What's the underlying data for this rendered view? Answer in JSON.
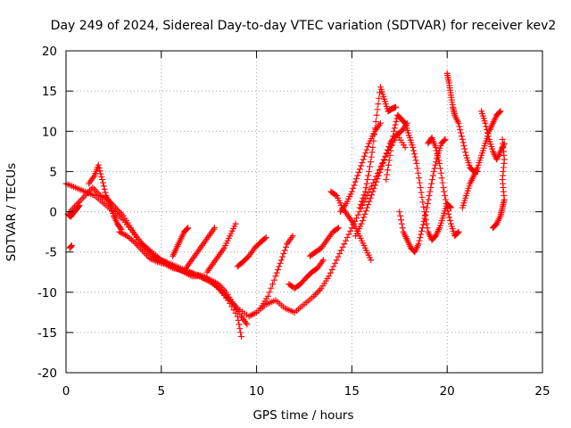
{
  "chart_data": {
    "type": "scatter",
    "title": "Day 249 of 2024, Sidereal Day-to-day VTEC variation (SDTVAR) for receiver kev2",
    "xlabel": "GPS time / hours",
    "ylabel": "SDTVAR / TECUs",
    "xlim": [
      0,
      25
    ],
    "ylim": [
      -20,
      20
    ],
    "xticks": [
      0,
      5,
      10,
      15,
      20,
      25
    ],
    "yticks": [
      -20,
      -15,
      -10,
      -5,
      0,
      5,
      10,
      15,
      20
    ],
    "grid": true,
    "marker": "+",
    "color": "#ff0000",
    "series": [
      {
        "name": "trace-1",
        "points": [
          [
            0.0,
            3.5
          ],
          [
            0.5,
            3.0
          ],
          [
            1.0,
            2.5
          ],
          [
            1.5,
            2.0
          ],
          [
            2.0,
            1.0
          ],
          [
            2.5,
            0.0
          ],
          [
            3.0,
            -1.0
          ],
          [
            3.5,
            -2.5
          ],
          [
            4.0,
            -4.0
          ],
          [
            4.5,
            -5.0
          ],
          [
            5.0,
            -6.0
          ],
          [
            5.5,
            -6.5
          ],
          [
            6.0,
            -7.0
          ],
          [
            6.5,
            -7.5
          ],
          [
            7.0,
            -8.0
          ],
          [
            7.5,
            -8.5
          ],
          [
            8.0,
            -9.5
          ],
          [
            8.5,
            -11.0
          ],
          [
            9.0,
            -13.0
          ],
          [
            9.2,
            -15.5
          ]
        ]
      },
      {
        "name": "trace-2",
        "points": [
          [
            0.2,
            0.0
          ],
          [
            0.6,
            1.0
          ],
          [
            1.0,
            2.0
          ],
          [
            1.4,
            3.0
          ],
          [
            1.8,
            2.0
          ],
          [
            2.2,
            1.5
          ],
          [
            2.6,
            0.5
          ],
          [
            3.0,
            -0.5
          ],
          [
            3.4,
            -2.0
          ],
          [
            3.8,
            -3.5
          ],
          [
            4.2,
            -4.5
          ],
          [
            4.6,
            -5.5
          ],
          [
            5.0,
            -6.0
          ],
          [
            5.4,
            -6.5
          ],
          [
            5.8,
            -7.0
          ],
          [
            6.2,
            -7.5
          ],
          [
            6.6,
            -8.0
          ],
          [
            7.0,
            -8.0
          ],
          [
            7.4,
            -8.5
          ],
          [
            7.8,
            -9.0
          ],
          [
            8.2,
            -10.0
          ],
          [
            8.6,
            -11.0
          ],
          [
            9.0,
            -12.0
          ],
          [
            9.6,
            -13.0
          ],
          [
            10.0,
            -12.5
          ],
          [
            10.5,
            -11.5
          ],
          [
            11.0,
            -11.0
          ],
          [
            11.5,
            -12.0
          ],
          [
            12.0,
            -12.5
          ],
          [
            12.5,
            -11.5
          ],
          [
            13.0,
            -10.5
          ],
          [
            13.4,
            -9.5
          ],
          [
            13.8,
            -8.0
          ],
          [
            14.2,
            -6.0
          ],
          [
            14.6,
            -4.0
          ],
          [
            15.0,
            -2.0
          ],
          [
            15.4,
            0.0
          ],
          [
            15.8,
            2.0
          ],
          [
            16.2,
            4.0
          ],
          [
            16.6,
            6.0
          ],
          [
            17.0,
            8.0
          ],
          [
            17.4,
            9.5
          ],
          [
            17.8,
            8.0
          ]
        ]
      },
      {
        "name": "trace-3",
        "points": [
          [
            1.2,
            3.5
          ],
          [
            1.5,
            4.5
          ],
          [
            1.7,
            5.8
          ],
          [
            1.9,
            4.0
          ],
          [
            2.1,
            2.0
          ],
          [
            2.3,
            1.0
          ],
          [
            2.5,
            -0.5
          ],
          [
            2.7,
            -1.5
          ],
          [
            2.9,
            -2.2
          ]
        ]
      },
      {
        "name": "trace-4",
        "points": [
          [
            2.8,
            -2.5
          ],
          [
            3.2,
            -3.0
          ],
          [
            3.6,
            -3.8
          ],
          [
            4.0,
            -4.8
          ],
          [
            4.4,
            -5.8
          ],
          [
            4.8,
            -6.2
          ],
          [
            5.2,
            -6.5
          ],
          [
            5.6,
            -7.0
          ],
          [
            6.0,
            -7.2
          ],
          [
            6.4,
            -7.5
          ],
          [
            6.8,
            -7.8
          ],
          [
            7.2,
            -8.0
          ],
          [
            7.6,
            -8.5
          ],
          [
            8.0,
            -9.0
          ],
          [
            8.4,
            -10.0
          ],
          [
            8.8,
            -11.5
          ],
          [
            9.2,
            -13.0
          ],
          [
            9.5,
            -14.0
          ]
        ]
      },
      {
        "name": "trace-5",
        "points": [
          [
            5.6,
            -5.5
          ],
          [
            5.8,
            -4.5
          ],
          [
            6.0,
            -3.5
          ],
          [
            6.2,
            -2.5
          ],
          [
            6.4,
            -2.0
          ]
        ]
      },
      {
        "name": "trace-6",
        "points": [
          [
            6.3,
            -7.0
          ],
          [
            6.6,
            -6.0
          ],
          [
            6.9,
            -5.0
          ],
          [
            7.2,
            -4.0
          ],
          [
            7.5,
            -3.0
          ],
          [
            7.8,
            -2.0
          ]
        ]
      },
      {
        "name": "trace-7",
        "points": [
          [
            7.4,
            -7.5
          ],
          [
            7.7,
            -6.5
          ],
          [
            8.0,
            -5.5
          ],
          [
            8.3,
            -4.5
          ],
          [
            8.6,
            -3.0
          ],
          [
            8.9,
            -1.5
          ]
        ]
      },
      {
        "name": "trace-8",
        "points": [
          [
            9.0,
            -6.8
          ],
          [
            9.3,
            -6.2
          ],
          [
            9.6,
            -5.5
          ],
          [
            9.9,
            -4.5
          ],
          [
            10.2,
            -3.8
          ],
          [
            10.5,
            -3.2
          ]
        ]
      },
      {
        "name": "trace-9",
        "points": [
          [
            10.2,
            -12.0
          ],
          [
            10.6,
            -10.5
          ],
          [
            11.0,
            -8.0
          ],
          [
            11.3,
            -6.0
          ],
          [
            11.6,
            -4.0
          ],
          [
            11.9,
            -3.0
          ]
        ]
      },
      {
        "name": "trace-10",
        "points": [
          [
            11.7,
            -9.0
          ],
          [
            12.0,
            -9.5
          ],
          [
            12.3,
            -9.0
          ],
          [
            12.6,
            -8.2
          ],
          [
            12.9,
            -7.5
          ],
          [
            13.2,
            -7.0
          ],
          [
            13.5,
            -6.0
          ]
        ]
      },
      {
        "name": "trace-11",
        "points": [
          [
            12.8,
            -5.5
          ],
          [
            13.1,
            -5.0
          ],
          [
            13.4,
            -4.5
          ],
          [
            13.7,
            -3.5
          ],
          [
            14.0,
            -2.5
          ],
          [
            14.3,
            -2.0
          ]
        ]
      },
      {
        "name": "trace-12",
        "points": [
          [
            13.9,
            2.5
          ],
          [
            14.2,
            2.0
          ],
          [
            14.5,
            0.5
          ],
          [
            14.8,
            -0.5
          ],
          [
            15.1,
            -1.5
          ],
          [
            15.4,
            -3.0
          ],
          [
            15.7,
            -4.5
          ],
          [
            16.0,
            -6.0
          ]
        ]
      },
      {
        "name": "trace-13",
        "points": [
          [
            14.4,
            0.0
          ],
          [
            14.7,
            1.0
          ],
          [
            15.0,
            2.5
          ],
          [
            15.3,
            4.5
          ],
          [
            15.6,
            6.5
          ],
          [
            15.9,
            8.5
          ],
          [
            16.2,
            10.0
          ],
          [
            16.5,
            11.0
          ]
        ]
      },
      {
        "name": "trace-14",
        "points": [
          [
            15.2,
            -3.0
          ],
          [
            15.5,
            -1.5
          ],
          [
            15.8,
            0.5
          ],
          [
            16.1,
            2.5
          ],
          [
            16.4,
            4.5
          ],
          [
            16.7,
            6.5
          ],
          [
            17.0,
            8.5
          ],
          [
            17.3,
            9.5
          ],
          [
            17.6,
            10.0
          ],
          [
            17.9,
            11.0
          ]
        ]
      },
      {
        "name": "trace-15",
        "points": [
          [
            15.4,
            0.5
          ],
          [
            15.7,
            2.5
          ],
          [
            15.9,
            5.0
          ],
          [
            16.1,
            8.0
          ],
          [
            16.3,
            12.0
          ],
          [
            16.5,
            15.5
          ],
          [
            16.7,
            14.0
          ],
          [
            16.9,
            12.5
          ],
          [
            17.1,
            12.8
          ],
          [
            17.3,
            13.0
          ]
        ]
      },
      {
        "name": "trace-16",
        "points": [
          [
            16.8,
            4.0
          ],
          [
            17.0,
            7.0
          ],
          [
            17.2,
            10.0
          ],
          [
            17.4,
            12.0
          ],
          [
            17.6,
            11.5
          ],
          [
            17.8,
            11.0
          ],
          [
            18.0,
            9.5
          ],
          [
            18.2,
            8.0
          ],
          [
            18.4,
            6.0
          ],
          [
            18.6,
            3.0
          ],
          [
            18.8,
            0.0
          ],
          [
            19.0,
            -2.5
          ],
          [
            19.2,
            -3.5
          ],
          [
            19.4,
            -3.0
          ],
          [
            19.6,
            -2.0
          ],
          [
            19.8,
            -0.5
          ],
          [
            20.0,
            1.0
          ],
          [
            20.2,
            0.5
          ]
        ]
      },
      {
        "name": "trace-17",
        "points": [
          [
            17.5,
            0.0
          ],
          [
            17.7,
            -2.5
          ],
          [
            17.9,
            -3.5
          ],
          [
            18.1,
            -4.5
          ],
          [
            18.3,
            -5.0
          ],
          [
            18.5,
            -4.0
          ],
          [
            18.7,
            -2.0
          ],
          [
            18.9,
            0.0
          ],
          [
            19.1,
            2.5
          ],
          [
            19.3,
            5.0
          ],
          [
            19.5,
            7.0
          ],
          [
            19.7,
            8.5
          ],
          [
            19.9,
            9.0
          ]
        ]
      },
      {
        "name": "trace-18",
        "points": [
          [
            19.0,
            8.5
          ],
          [
            19.2,
            9.2
          ],
          [
            19.4,
            8.0
          ],
          [
            19.6,
            6.0
          ],
          [
            19.8,
            3.0
          ],
          [
            20.0,
            0.5
          ],
          [
            20.2,
            -1.5
          ],
          [
            20.4,
            -3.0
          ],
          [
            20.6,
            -2.5
          ]
        ]
      },
      {
        "name": "trace-19",
        "points": [
          [
            20.0,
            17.2
          ],
          [
            20.1,
            16.0
          ],
          [
            20.2,
            14.5
          ],
          [
            20.3,
            13.0
          ],
          [
            20.4,
            12.0
          ],
          [
            20.6,
            11.0
          ],
          [
            20.8,
            9.0
          ],
          [
            21.0,
            7.0
          ],
          [
            21.2,
            5.5
          ],
          [
            21.4,
            5.0
          ],
          [
            21.6,
            5.0
          ]
        ]
      },
      {
        "name": "trace-20",
        "points": [
          [
            20.8,
            0.5
          ],
          [
            21.0,
            2.0
          ],
          [
            21.2,
            3.5
          ],
          [
            21.4,
            4.5
          ],
          [
            21.6,
            5.5
          ],
          [
            21.8,
            7.0
          ],
          [
            22.0,
            8.5
          ],
          [
            22.2,
            10.0
          ],
          [
            22.4,
            11.0
          ],
          [
            22.6,
            12.0
          ],
          [
            22.8,
            12.5
          ]
        ]
      },
      {
        "name": "trace-21",
        "points": [
          [
            21.8,
            12.5
          ],
          [
            22.0,
            11.0
          ],
          [
            22.2,
            9.0
          ],
          [
            22.4,
            7.5
          ],
          [
            22.6,
            6.5
          ],
          [
            22.8,
            7.5
          ],
          [
            23.0,
            8.5
          ]
        ]
      },
      {
        "name": "trace-22",
        "points": [
          [
            22.4,
            -2.0
          ],
          [
            22.6,
            -1.5
          ],
          [
            22.8,
            -0.5
          ],
          [
            22.9,
            0.5
          ],
          [
            23.0,
            1.5
          ],
          [
            22.9,
            4.0
          ],
          [
            23.0,
            6.5
          ],
          [
            22.9,
            9.0
          ]
        ]
      },
      {
        "name": "trace-23",
        "points": [
          [
            0.1,
            -0.3
          ],
          [
            0.25,
            -0.6
          ],
          [
            0.4,
            -0.1
          ],
          [
            0.55,
            0.3
          ],
          [
            0.7,
            0.8
          ]
        ]
      },
      {
        "name": "trace-24",
        "points": [
          [
            0.2,
            -4.5
          ],
          [
            0.3,
            -4.2
          ]
        ]
      }
    ]
  }
}
